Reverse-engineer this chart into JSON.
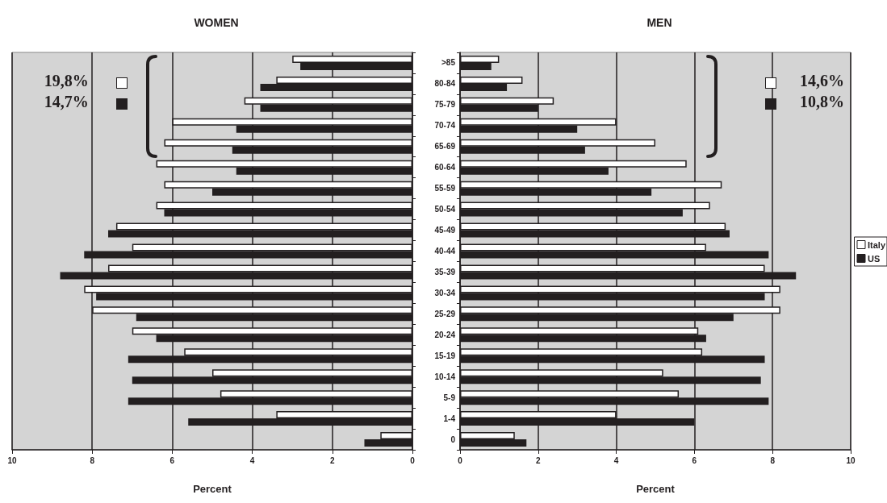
{
  "chart_data": [
    {
      "type": "bar",
      "orientation": "horizontal",
      "title": "WOMEN",
      "xlabel": "Percent",
      "categories": [
        null,
        null,
        null,
        null,
        null,
        null,
        null,
        null,
        null,
        null,
        null,
        null,
        null,
        null,
        null,
        null,
        null,
        null,
        null
      ],
      "series": [
        {
          "color": "#ffffff",
          "values": [
            3.0,
            3.4,
            4.2,
            6.0,
            6.2,
            6.4,
            6.2,
            6.4,
            7.4,
            7.0,
            7.6,
            8.2,
            8.0,
            7.0,
            5.7,
            5.0,
            4.8,
            3.4,
            0.8
          ]
        },
        {
          "color": "#231f20",
          "values": [
            2.8,
            3.8,
            3.8,
            4.4,
            4.5,
            4.4,
            5.0,
            6.2,
            7.6,
            8.2,
            8.8,
            7.9,
            6.9,
            6.4,
            7.1,
            7.0,
            7.1,
            5.6,
            1.2
          ]
        }
      ],
      "xlim": [
        10,
        0
      ],
      "xticks": [
        10,
        8,
        6,
        4,
        2,
        0
      ],
      "grid": "x",
      "legend": false,
      "tick_labels": "x",
      "annotations": [
        "19,8%",
        "14,7%"
      ]
    },
    {
      "type": "bar",
      "orientation": "horizontal",
      "title": "MEN",
      "xlabel": "Percent",
      "categories": [
        ">85",
        "80-84",
        "75-79",
        "70-74",
        "65-69",
        "60-64",
        "55-59",
        "50-54",
        "45-49",
        "40-44",
        "35-39",
        "30-34",
        "25-29",
        "20-24",
        "15-19",
        "10-14",
        "5-9",
        "1-4",
        "0"
      ],
      "series": [
        {
          "name": "Italy",
          "color": "#ffffff",
          "values": [
            1.0,
            1.6,
            2.4,
            4.0,
            5.0,
            5.8,
            6.7,
            6.4,
            6.8,
            6.3,
            7.8,
            8.2,
            8.2,
            6.1,
            6.2,
            5.2,
            5.6,
            4.0,
            1.4
          ]
        },
        {
          "name": "US",
          "color": "#231f20",
          "values": [
            0.8,
            1.2,
            2.0,
            3.0,
            3.2,
            3.8,
            4.9,
            5.7,
            6.9,
            7.9,
            8.6,
            7.8,
            7.0,
            6.3,
            7.8,
            7.7,
            7.9,
            6.0,
            1.7
          ]
        }
      ],
      "xlim": [
        0,
        10
      ],
      "xticks": [
        0,
        2,
        4,
        6,
        8,
        10
      ],
      "grid": "x",
      "legend": "right",
      "annotations": [
        "14,6%",
        "10,8%"
      ]
    }
  ]
}
